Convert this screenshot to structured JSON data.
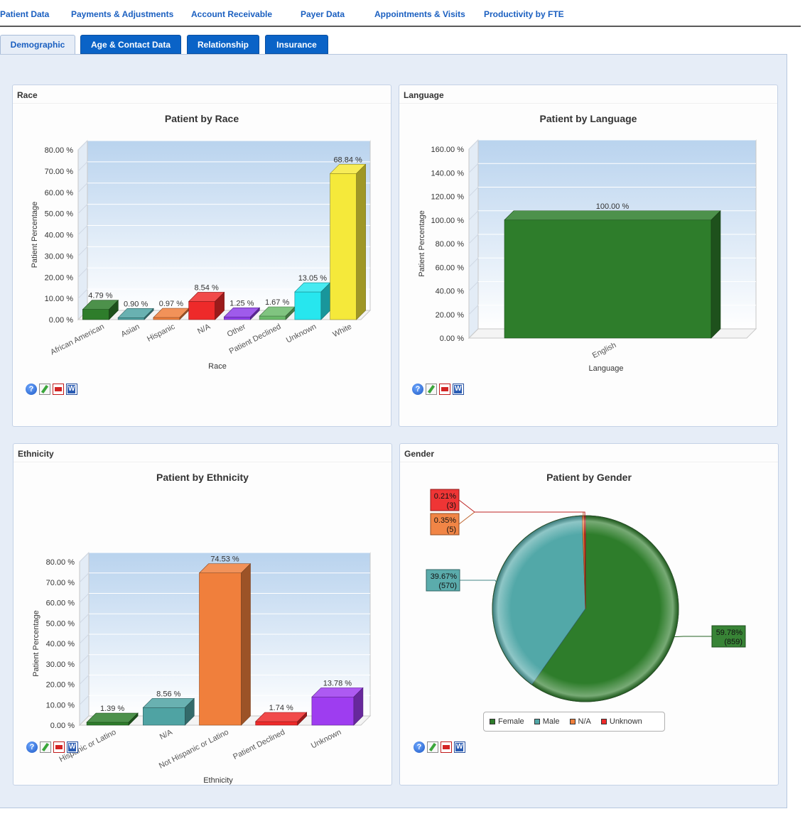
{
  "top_nav": [
    "Patient Data",
    "Payments & Adjustments",
    "Account Receivable",
    "Payer Data",
    "Appointments & Visits",
    "Productivity by FTE"
  ],
  "sub_tabs": [
    "Demographic",
    "Age & Contact Data",
    "Relationship",
    "Insurance"
  ],
  "active_sub_tab": "Demographic",
  "panels": {
    "race": {
      "header": "Race"
    },
    "language": {
      "header": "Language"
    },
    "ethnicity": {
      "header": "Ethnicity"
    },
    "gender": {
      "header": "Gender"
    }
  },
  "toolbar_icons": [
    "help-icon",
    "edit-icon",
    "pdf-icon",
    "word-icon"
  ],
  "chart_data": [
    {
      "id": "race",
      "type": "bar",
      "title": "Patient by Race",
      "xlabel": "Race",
      "ylabel": "Patient Percentage",
      "ylim": [
        0,
        80
      ],
      "yticks": [
        "0.00 %",
        "10.00 %",
        "20.00 %",
        "30.00 %",
        "40.00 %",
        "50.00 %",
        "60.00 %",
        "70.00 %",
        "80.00 %"
      ],
      "categories": [
        "African American",
        "Asian",
        "Hispanic",
        "N/A",
        "Other",
        "Patient Declined",
        "Unknown",
        "White"
      ],
      "values": [
        4.79,
        0.9,
        0.97,
        8.54,
        1.25,
        1.67,
        13.05,
        68.84
      ],
      "data_labels": [
        "4.79 %",
        "0.90 %",
        "0.97 %",
        "8.54 %",
        "1.25 %",
        "1.67 %",
        "13.05 %",
        "68.84 %"
      ],
      "colors": [
        "#2e7d2b",
        "#4fa3a3",
        "#f07f3c",
        "#ee2a2a",
        "#8e3ee8",
        "#6aba6a",
        "#27e6ee",
        "#f5e93a"
      ]
    },
    {
      "id": "language",
      "type": "bar",
      "title": "Patient by Language",
      "xlabel": "Language",
      "ylabel": "Patient Percentage",
      "ylim": [
        0,
        160
      ],
      "yticks": [
        "0.00 %",
        "20.00 %",
        "40.00 %",
        "60.00 %",
        "80.00 %",
        "100.00 %",
        "120.00 %",
        "140.00 %",
        "160.00 %"
      ],
      "categories": [
        "English"
      ],
      "values": [
        100.0
      ],
      "data_labels": [
        "100.00 %"
      ],
      "colors": [
        "#2e7d2b"
      ]
    },
    {
      "id": "ethnicity",
      "type": "bar",
      "title": "Patient by Ethnicity",
      "xlabel": "Ethnicity",
      "ylabel": "Patient Percentage",
      "ylim": [
        0,
        80
      ],
      "yticks": [
        "0.00 %",
        "10.00 %",
        "20.00 %",
        "30.00 %",
        "40.00 %",
        "50.00 %",
        "60.00 %",
        "70.00 %",
        "80.00 %"
      ],
      "categories": [
        "Hispanic or Latino",
        "N/A",
        "Not Hispanic or Latino",
        "Patient Declined",
        "Unknown"
      ],
      "values": [
        1.39,
        8.56,
        74.53,
        1.74,
        13.78
      ],
      "data_labels": [
        "1.39 %",
        "8.56 %",
        "74.53 %",
        "1.74 %",
        "13.78 %"
      ],
      "colors": [
        "#2e7d2b",
        "#4fa3a3",
        "#f07f3c",
        "#ee2a2a",
        "#9e3df0"
      ]
    },
    {
      "id": "gender",
      "type": "pie",
      "title": "Patient by Gender",
      "categories": [
        "Female",
        "Male",
        "N/A",
        "Unknown"
      ],
      "values": [
        59.78,
        39.67,
        0.35,
        0.21
      ],
      "counts": [
        859,
        570,
        5,
        3
      ],
      "percent_labels": [
        "59.78%",
        "39.67%",
        "0.35%",
        "0.21%"
      ],
      "count_labels": [
        "(859)",
        "(570)",
        "(5)",
        "(3)"
      ],
      "colors": [
        "#2e7d2b",
        "#52a8a8",
        "#f07f3c",
        "#ee2a2a"
      ],
      "legend": [
        "Female",
        "Male",
        "N/A",
        "Unknown"
      ]
    }
  ]
}
